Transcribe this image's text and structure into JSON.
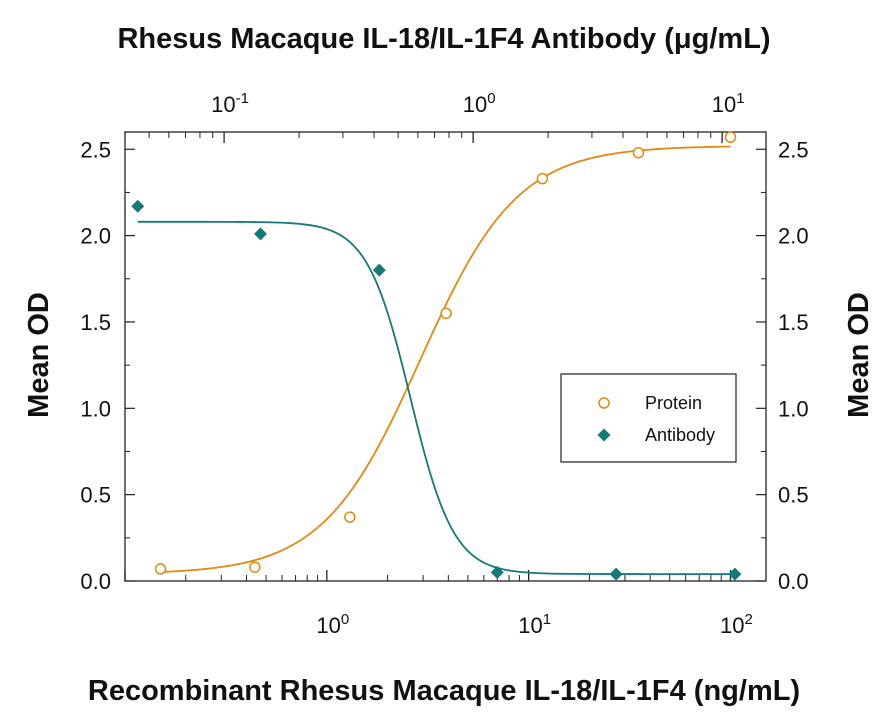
{
  "chart_data": {
    "type": "scatter",
    "title": "Rhesus Macaque IL-18/IL-1F4 Antibody (μg/mL)",
    "xlabel": "Recombinant Rhesus Macaque IL-18/IL-1F4 (ng/mL)",
    "ylabel": "Mean OD",
    "ylabel_right": "Mean OD",
    "x_scale": "log",
    "xlim": [
      0.1,
      150
    ],
    "ylim": [
      0,
      2.6
    ],
    "x_ticks": [
      {
        "value": 1,
        "base": "10",
        "exp": "0"
      },
      {
        "value": 10,
        "base": "10",
        "exp": "1"
      },
      {
        "value": 100,
        "base": "10",
        "exp": "2"
      }
    ],
    "top_axis": {
      "x_scale": "log",
      "xlim": [
        0.04,
        15
      ],
      "ticks": [
        {
          "value": 0.1,
          "base": "10",
          "exp": "-1"
        },
        {
          "value": 1,
          "base": "10",
          "exp": "0"
        },
        {
          "value": 10,
          "base": "10",
          "exp": "1"
        }
      ]
    },
    "y_ticks": [
      "0.0",
      "0.5",
      "1.0",
      "1.5",
      "2.0",
      "2.5"
    ],
    "grid": false,
    "legend_position": "right-middle",
    "series": [
      {
        "name": "Protein",
        "axis": "bottom",
        "color": "#E08A0F",
        "marker": "open-circle",
        "x": [
          0.15,
          0.44,
          1.3,
          3.9,
          11.7,
          35,
          100
        ],
        "y": [
          0.07,
          0.08,
          0.37,
          1.55,
          2.33,
          2.48,
          2.57
        ],
        "fit": {
          "bottom": 0.04,
          "top": 2.52,
          "ec50": 2.9,
          "hill": 1.8
        }
      },
      {
        "name": "Antibody",
        "axis": "top",
        "color": "#137A77",
        "marker": "filled-diamond",
        "x": [
          0.045,
          0.14,
          0.42,
          1.25,
          3.75,
          11.25
        ],
        "y": [
          2.17,
          2.01,
          1.8,
          0.05,
          0.04,
          0.04
        ],
        "fit": {
          "bottom": 0.04,
          "top": 2.08,
          "ec50": 0.56,
          "hill": 5.0
        }
      }
    ]
  }
}
